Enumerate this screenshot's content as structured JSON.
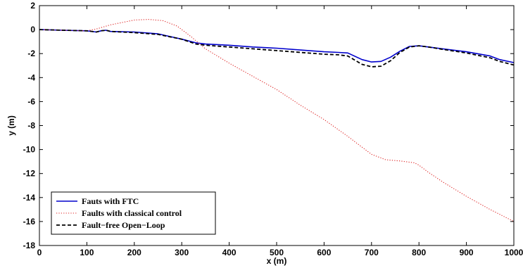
{
  "chart_data": {
    "type": "line",
    "title": "",
    "xlabel": "x (m)",
    "ylabel": "y (m)",
    "xlim": [
      0,
      1000
    ],
    "ylim": [
      -18,
      2
    ],
    "xticks": [
      0,
      100,
      200,
      300,
      400,
      500,
      600,
      700,
      800,
      900,
      1000
    ],
    "yticks": [
      2,
      0,
      -2,
      -4,
      -6,
      -8,
      -10,
      -12,
      -14,
      -16,
      -18
    ],
    "grid": false,
    "legend_position": "bottom-left",
    "series": [
      {
        "name": "Fauts with FTC",
        "color": "#0000cc",
        "style": "solid",
        "x": [
          0,
          50,
          100,
          120,
          130,
          140,
          150,
          200,
          250,
          300,
          330,
          350,
          400,
          450,
          500,
          550,
          600,
          630,
          650,
          680,
          700,
          720,
          740,
          760,
          780,
          800,
          820,
          850,
          900,
          950,
          970,
          1000
        ],
        "y": [
          0,
          -0.05,
          -0.1,
          -0.2,
          -0.1,
          -0.05,
          -0.15,
          -0.2,
          -0.35,
          -0.8,
          -1.1,
          -1.2,
          -1.3,
          -1.45,
          -1.55,
          -1.7,
          -1.85,
          -1.9,
          -1.95,
          -2.5,
          -2.7,
          -2.65,
          -2.3,
          -1.8,
          -1.4,
          -1.35,
          -1.45,
          -1.6,
          -1.85,
          -2.2,
          -2.5,
          -2.75
        ]
      },
      {
        "name": "Faults with classical control",
        "color": "#dd2222",
        "style": "dotted",
        "x": [
          0,
          50,
          100,
          120,
          150,
          200,
          230,
          260,
          290,
          320,
          350,
          400,
          450,
          500,
          550,
          600,
          650,
          680,
          700,
          730,
          760,
          790,
          800,
          820,
          850,
          900,
          950,
          1000
        ],
        "y": [
          0,
          -0.05,
          -0.1,
          0.05,
          0.4,
          0.8,
          0.85,
          0.75,
          0.3,
          -0.6,
          -1.6,
          -2.8,
          -3.9,
          -5.0,
          -6.3,
          -7.5,
          -8.9,
          -9.8,
          -10.4,
          -10.85,
          -10.95,
          -11.1,
          -11.3,
          -11.9,
          -12.7,
          -13.9,
          -15.0,
          -16.0
        ]
      },
      {
        "name": "Fault−free Open−Loop",
        "color": "#000000",
        "style": "dashed",
        "x": [
          0,
          50,
          100,
          120,
          130,
          140,
          150,
          200,
          250,
          300,
          330,
          350,
          400,
          450,
          500,
          550,
          600,
          630,
          650,
          680,
          700,
          720,
          740,
          760,
          780,
          800,
          820,
          850,
          900,
          950,
          970,
          1000
        ],
        "y": [
          0,
          -0.05,
          -0.1,
          -0.2,
          -0.1,
          -0.05,
          -0.15,
          -0.25,
          -0.4,
          -0.8,
          -1.2,
          -1.3,
          -1.45,
          -1.6,
          -1.75,
          -1.9,
          -2.05,
          -2.1,
          -2.2,
          -2.9,
          -3.1,
          -3.05,
          -2.6,
          -1.9,
          -1.45,
          -1.35,
          -1.45,
          -1.65,
          -1.95,
          -2.35,
          -2.65,
          -2.95
        ]
      }
    ]
  }
}
